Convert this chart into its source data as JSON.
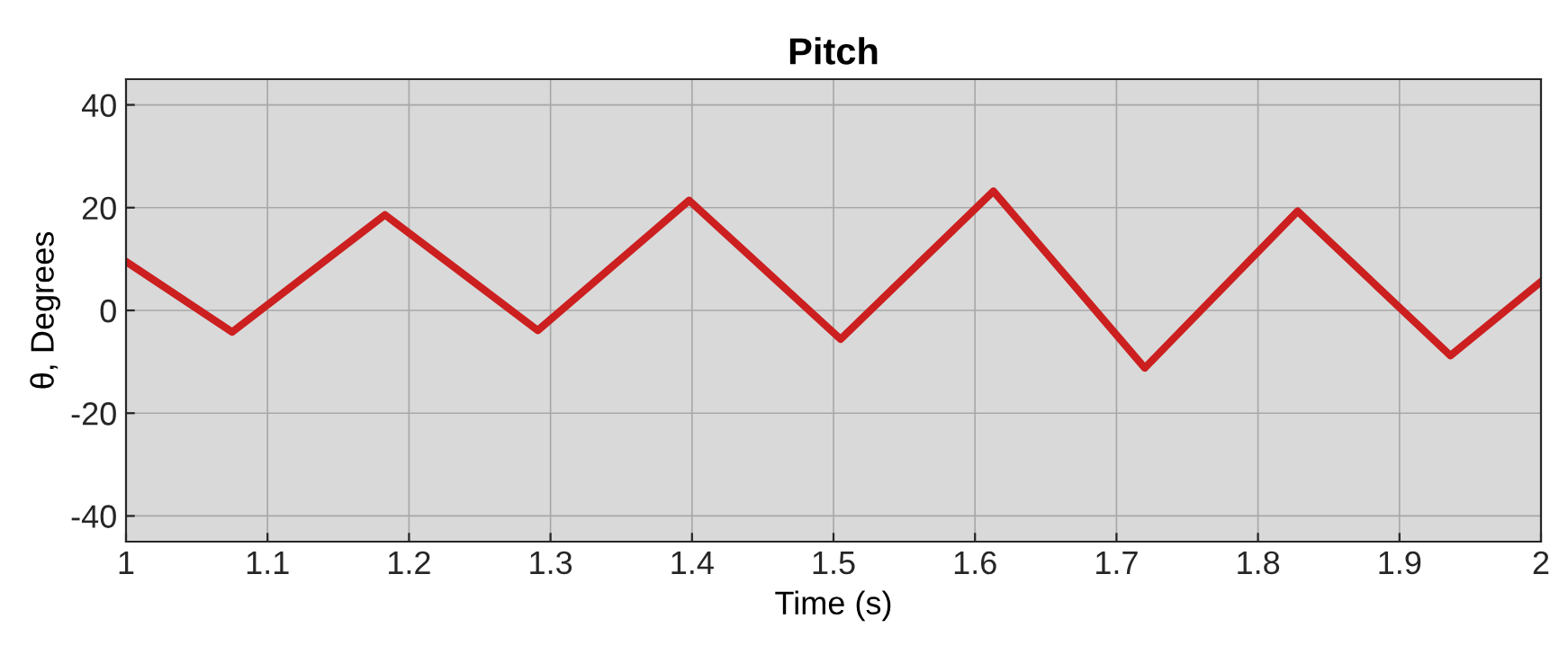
{
  "chart_data": {
    "type": "line",
    "title": "Pitch",
    "xlabel": "Time (s)",
    "ylabel": "θ, Degrees",
    "series": [
      {
        "color": "#cc1f1f",
        "x": [
          1,
          1.075,
          1.183,
          1.291,
          1.398,
          1.505,
          1.613,
          1.72,
          1.828,
          1.936,
          2
        ],
        "values": [
          9.5,
          -4.2,
          18.6,
          -3.9,
          21.4,
          -5.6,
          23.2,
          -11.2,
          19.3,
          -8.8,
          5.6
        ]
      }
    ],
    "xlim": [
      1,
      2
    ],
    "xticks": [
      1,
      1.1,
      1.2,
      1.3,
      1.4,
      1.5,
      1.6,
      1.7,
      1.8,
      1.9,
      2
    ],
    "ylim": [
      -45,
      45
    ],
    "yticks": [
      -40,
      -20,
      0,
      20,
      40
    ],
    "grid": true,
    "marker": "none",
    "line_style": "solid"
  }
}
